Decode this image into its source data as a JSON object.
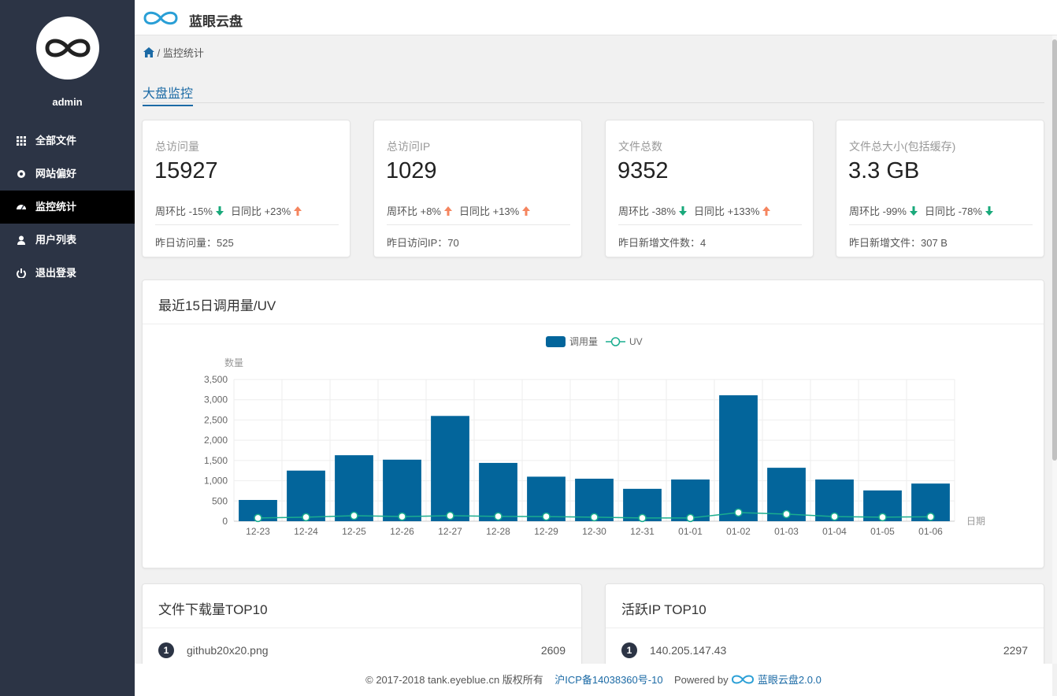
{
  "sidebar": {
    "username": "admin",
    "menu": [
      {
        "label": "全部文件",
        "active": false
      },
      {
        "label": "网站偏好",
        "active": false
      },
      {
        "label": "监控统计",
        "active": true
      },
      {
        "label": "用户列表",
        "active": false
      },
      {
        "label": "退出登录",
        "active": false
      }
    ]
  },
  "header": {
    "title": "蓝眼云盘"
  },
  "breadcrumb": {
    "current": "监控统计"
  },
  "tab": "大盘监控",
  "cards": [
    {
      "label": "总访问量",
      "value": 15927,
      "week": {
        "text": "周环比 -15%",
        "trend": "down"
      },
      "day": {
        "text": "日同比 +23%",
        "trend": "up"
      },
      "footer": "昨日访问量：525"
    },
    {
      "label": "总访问IP",
      "value": 1029,
      "week": {
        "text": "周环比 +8%",
        "trend": "up"
      },
      "day": {
        "text": "日同比 +13%",
        "trend": "up"
      },
      "footer": "昨日访问IP：70"
    },
    {
      "label": "文件总数",
      "value": 9352,
      "week": {
        "text": "周环比 -38%",
        "trend": "down"
      },
      "day": {
        "text": "日同比 +133%",
        "trend": "up"
      },
      "footer": "昨日新增文件数：4"
    },
    {
      "label": "文件总大小(包括缓存)",
      "value": "3.3 GB",
      "week": {
        "text": "周环比 -99%",
        "trend": "down"
      },
      "day": {
        "text": "日同比 -78%",
        "trend": "down"
      },
      "footer": "昨日新增文件：307 B"
    }
  ],
  "chart_data": {
    "type": "bar",
    "title": "最近15日调用量/UV",
    "y_label": "数量",
    "x_label": "日期",
    "categories": [
      "12-23",
      "12-24",
      "12-25",
      "12-26",
      "12-27",
      "12-28",
      "12-29",
      "12-30",
      "12-31",
      "01-01",
      "01-02",
      "01-03",
      "01-04",
      "01-05",
      "01-06"
    ],
    "series": [
      {
        "name": "调用量",
        "type": "bar",
        "color": "#03659b",
        "values": [
          525,
          1250,
          1630,
          1520,
          2600,
          1440,
          1100,
          1050,
          800,
          1030,
          3110,
          1320,
          1030,
          760,
          930
        ]
      },
      {
        "name": "UV",
        "type": "line",
        "color": "#1aad8f",
        "values": [
          80,
          100,
          135,
          115,
          135,
          120,
          115,
          100,
          80,
          80,
          215,
          175,
          115,
          100,
          110
        ]
      }
    ],
    "ylim": [
      0,
      3500
    ],
    "yticks": [
      0,
      500,
      {
        "value": 1000,
        "label": "1,000"
      },
      {
        "value": 1500,
        "label": "1,500"
      },
      {
        "value": 2000,
        "label": "2,000"
      },
      {
        "value": 2500,
        "label": "2,500"
      },
      {
        "value": 3000,
        "label": "3,000"
      },
      {
        "value": 3500,
        "label": "3,500"
      }
    ],
    "grid": true,
    "legend": "top"
  },
  "lists": [
    {
      "title": "文件下载量TOP10",
      "rows": [
        {
          "rank": 1,
          "name": "github20x20.png",
          "count": 2609
        }
      ]
    },
    {
      "title": "活跃IP TOP10",
      "rows": [
        {
          "rank": 1,
          "name": "140.205.147.43",
          "count": 2297
        }
      ]
    }
  ],
  "footer": {
    "copyright": "© 2017-2018 tank.eyeblue.cn 版权所有",
    "icp": "沪ICP备14038360号-10",
    "powered": "Powered by",
    "product": "蓝眼云盘2.0.0"
  }
}
